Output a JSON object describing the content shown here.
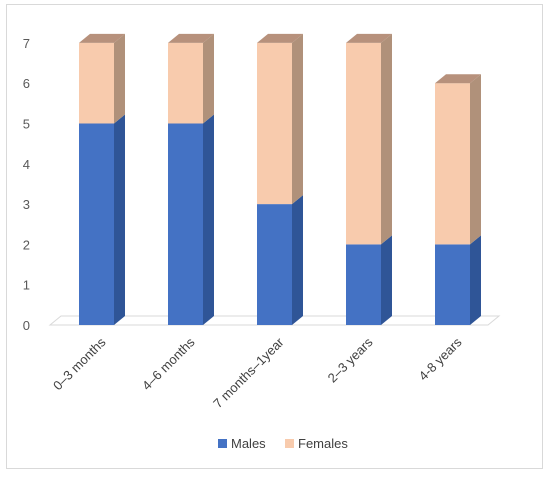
{
  "chart_data": {
    "type": "bar",
    "stacked": true,
    "style": "3d-column",
    "categories": [
      "0–3 months",
      "4–6 months",
      "7 months–1year",
      "2–3 years",
      "4-8 years"
    ],
    "series": [
      {
        "name": "Males",
        "values": [
          5,
          5,
          3,
          2,
          2
        ],
        "color": "#4472c4",
        "side_color": "#2f5597",
        "top_color": "#5b87d6"
      },
      {
        "name": "Females",
        "values": [
          2,
          2,
          4,
          5,
          4
        ],
        "color": "#f8cbad",
        "side_color": "#b0917a",
        "top_color": "#b7917c"
      }
    ],
    "yticks": [
      0,
      1,
      2,
      3,
      4,
      5,
      6,
      7
    ],
    "ylim": [
      0,
      7
    ],
    "title": "",
    "xlabel": "",
    "ylabel": "",
    "grid": false,
    "legend": "bottom"
  }
}
